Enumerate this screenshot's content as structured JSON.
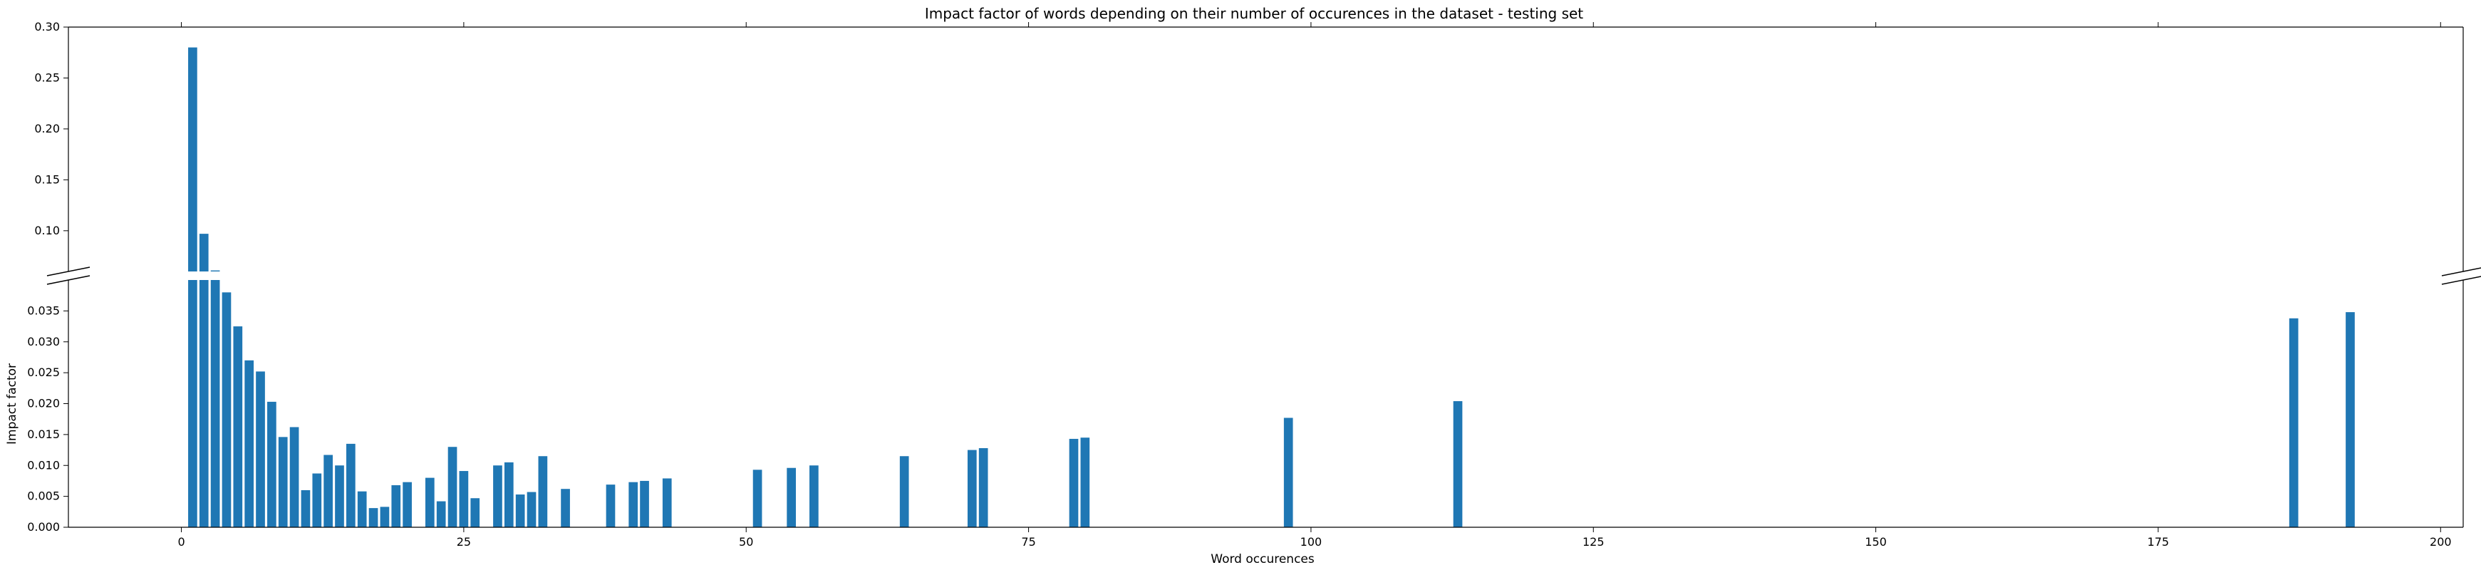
{
  "chart_data": {
    "type": "bar",
    "title": "Impact factor of words depending on their number of occurences in the dataset -  testing set",
    "xlabel": "Word occurences",
    "ylabel": "Impact factor",
    "xlim": [
      -10,
      202
    ],
    "broken_axis": true,
    "upper_ylim": [
      0.06,
      0.3
    ],
    "lower_ylim": [
      0.0,
      0.04
    ],
    "x_ticks": [
      "0",
      "25",
      "50",
      "75",
      "100",
      "125",
      "150",
      "175",
      "200"
    ],
    "upper_y_ticks": [
      "0.10",
      "0.15",
      "0.20",
      "0.25",
      "0.30"
    ],
    "lower_y_ticks": [
      "0.000",
      "0.005",
      "0.010",
      "0.015",
      "0.020",
      "0.025",
      "0.030",
      "0.035"
    ],
    "color": "#1f77b4",
    "grid": false,
    "x": [
      1,
      2,
      3,
      4,
      5,
      6,
      7,
      8,
      9,
      10,
      11,
      12,
      13,
      14,
      15,
      16,
      17,
      18,
      19,
      20,
      22,
      23,
      24,
      25,
      26,
      28,
      29,
      30,
      31,
      32,
      34,
      38,
      40,
      41,
      43,
      51,
      54,
      56,
      64,
      70,
      71,
      79,
      80,
      98,
      113,
      187,
      192
    ],
    "values": [
      0.28,
      0.097,
      0.061,
      0.038,
      0.0325,
      0.027,
      0.0252,
      0.0203,
      0.0146,
      0.0162,
      0.006,
      0.0087,
      0.0117,
      0.01,
      0.0135,
      0.0058,
      0.0031,
      0.0033,
      0.0068,
      0.0073,
      0.008,
      0.0042,
      0.013,
      0.0091,
      0.0047,
      0.01,
      0.0105,
      0.0053,
      0.0057,
      0.0115,
      0.0062,
      0.0069,
      0.0073,
      0.0075,
      0.0079,
      0.0093,
      0.0096,
      0.01,
      0.0115,
      0.0125,
      0.0128,
      0.0143,
      0.0145,
      0.0177,
      0.0204,
      0.0338,
      0.0348
    ]
  }
}
